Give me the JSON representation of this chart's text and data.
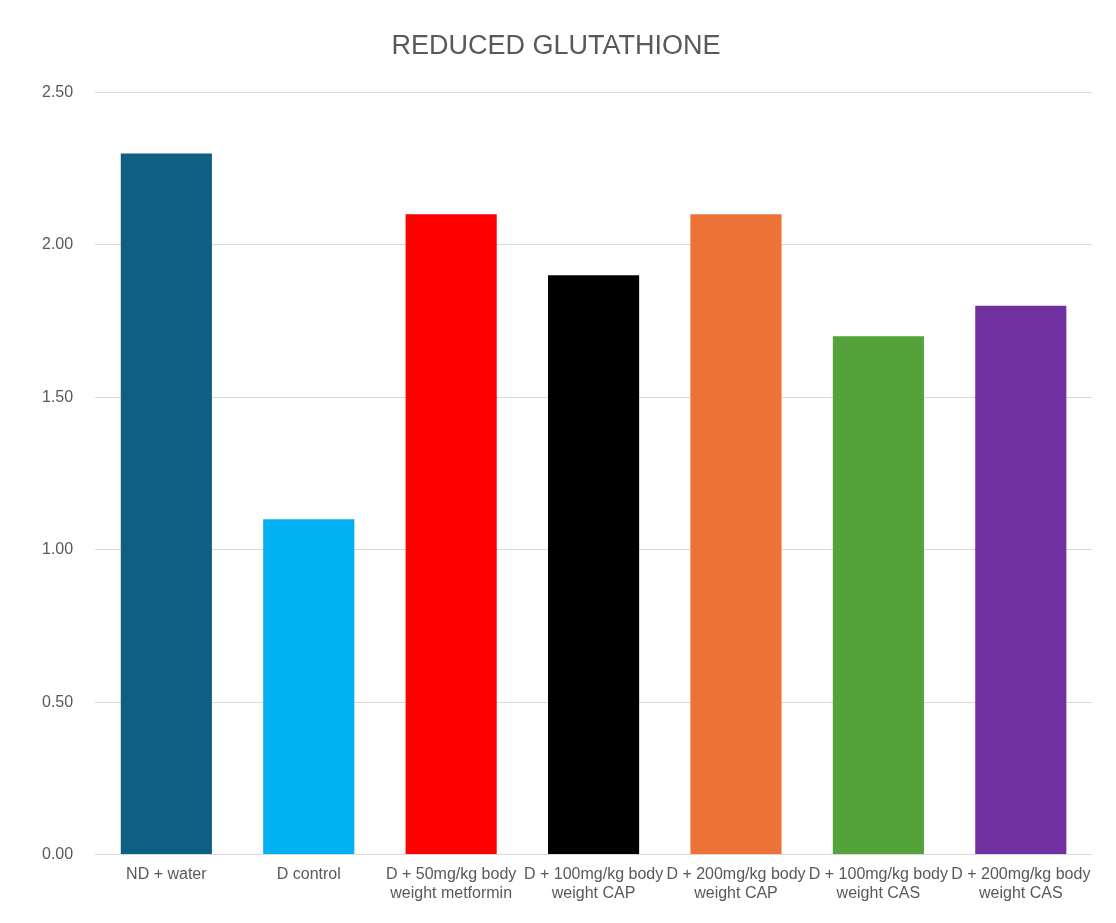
{
  "chart_data": {
    "type": "bar",
    "title": "REDUCED GLUTATHIONE",
    "categories": [
      "ND + water",
      "D control",
      "D + 50mg/kg body weight metformin",
      "D + 100mg/kg body weight CAP",
      "D + 200mg/kg body weight CAP",
      "D + 100mg/kg body weight CAS",
      "D + 200mg/kg body weight CAS"
    ],
    "values": [
      2.3,
      1.1,
      2.1,
      1.9,
      2.1,
      1.7,
      1.8
    ],
    "colors": [
      "#0e5f82",
      "#00b0f0",
      "#ff0000",
      "#000000",
      "#ed7237",
      "#54a33a",
      "#7030a0"
    ],
    "ylim": [
      0,
      2.5
    ],
    "yticks": [
      {
        "value": 0,
        "label": "0.00"
      },
      {
        "value": 0.5,
        "label": "0.50"
      },
      {
        "value": 1,
        "label": "1.00"
      },
      {
        "value": 1.5,
        "label": "1.50"
      },
      {
        "value": 2,
        "label": "2.00"
      },
      {
        "value": 2.5,
        "label": "2.50"
      }
    ],
    "grid": "y",
    "legend": false
  }
}
